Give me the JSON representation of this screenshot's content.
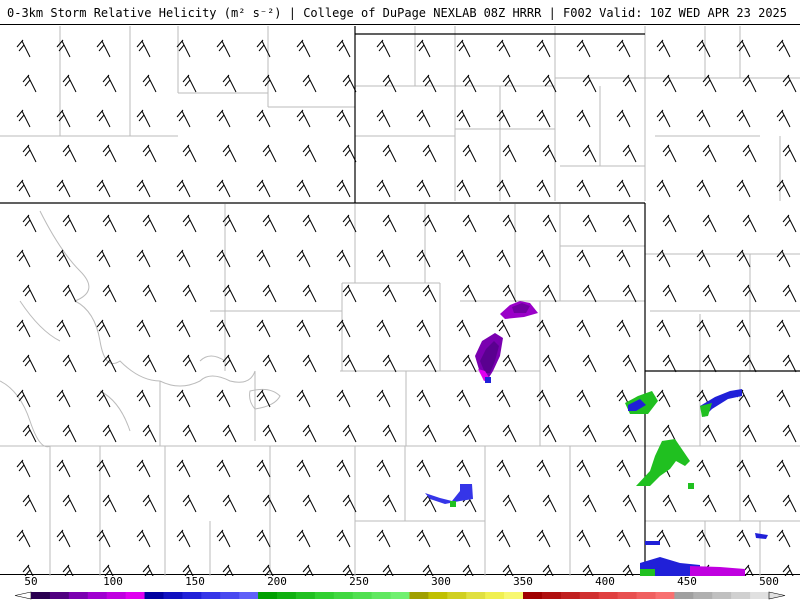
{
  "header": {
    "title_left": "0-3km Storm Relative Helicity (m² s⁻²) | College of DuPage NEXLAB",
    "title_right": "08Z HRRR | F002 Valid: 10Z WED APR 23 2025"
  },
  "legend": {
    "ticks": [
      "50",
      "100",
      "150",
      "200",
      "250",
      "300",
      "350",
      "400",
      "450",
      "500"
    ],
    "colors": {
      "purple_band": [
        "#2a0050",
        "#500080",
        "#7a00b0",
        "#a000d0",
        "#c000e0",
        "#e000f0"
      ],
      "blue_band": [
        "#0000a0",
        "#1010c0",
        "#2020d8",
        "#3535e8",
        "#4a4af0",
        "#6060f8"
      ],
      "green_band": [
        "#00a000",
        "#10b010",
        "#20c020",
        "#30d030",
        "#40d840",
        "#50e050",
        "#60e860",
        "#70f070"
      ],
      "yellow_band": [
        "#a0a000",
        "#c0c000",
        "#d0d020",
        "#e0e040",
        "#f0f050",
        "#f8f870"
      ],
      "red_band": [
        "#a00000",
        "#b01010",
        "#c02020",
        "#d03030",
        "#e04040",
        "#e85050",
        "#f06060",
        "#f87070"
      ],
      "gray_band": [
        "#a0a0a0",
        "#b0b0b0",
        "#c0c0c0",
        "#d0d0d0",
        "#e0e0e0"
      ]
    }
  },
  "map": {
    "state_border_color": "#000000",
    "county_border_color": "#bbbbbb",
    "barb_color": "#000000"
  }
}
